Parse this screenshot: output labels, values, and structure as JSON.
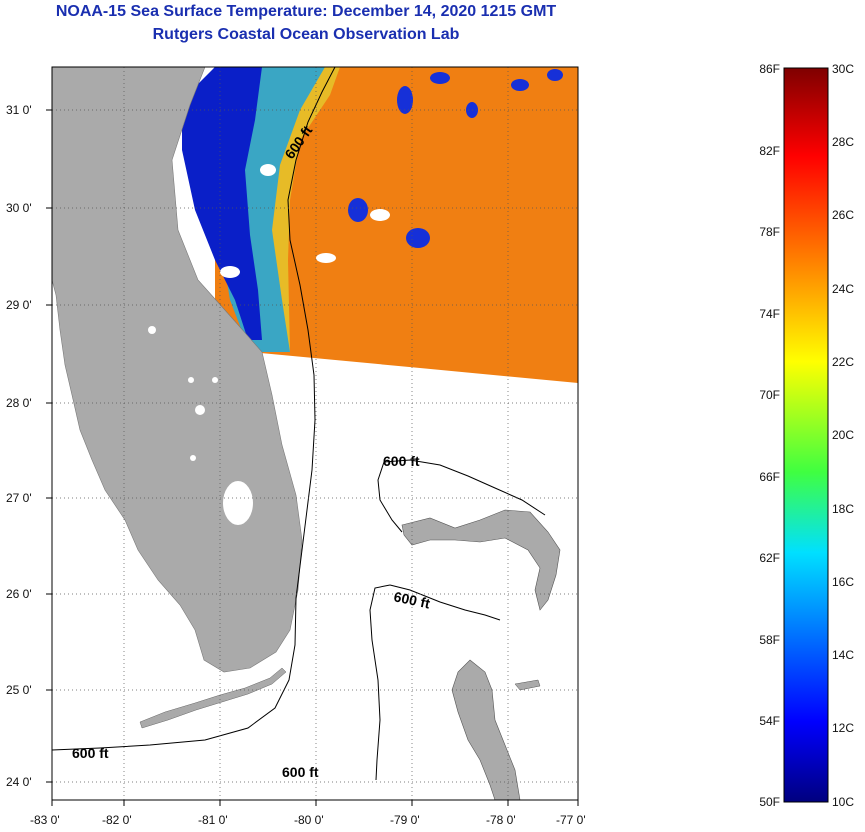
{
  "header": {
    "title": "NOAA-15 Sea Surface Temperature:  December 14, 2020 1215 GMT",
    "subtitle": "Rutgers Coastal Ocean Observation Lab"
  },
  "map": {
    "lat_labels": [
      "31 0'",
      "30 0'",
      "29 0'",
      "28 0'",
      "27 0'",
      "26 0'",
      "25 0'",
      "24 0'"
    ],
    "lon_labels": [
      "-83 0'",
      "-82 0'",
      "-81 0'",
      "-80 0'",
      "-79 0'",
      "-78 0'",
      "-77 0'"
    ],
    "contour_label": "600 ft"
  },
  "colorbar": {
    "f_labels": [
      "86F",
      "82F",
      "78F",
      "74F",
      "70F",
      "66F",
      "62F",
      "58F",
      "54F",
      "50F"
    ],
    "c_labels": [
      "30C",
      "28C",
      "26C",
      "24C",
      "22C",
      "20C",
      "18C",
      "16C",
      "14C",
      "12C",
      "10C"
    ]
  },
  "colors": {
    "title": "#1a2fb0",
    "land": "#a9a9a9",
    "warm_water": "#f08a10",
    "cold_water": "#0a1fc8"
  }
}
